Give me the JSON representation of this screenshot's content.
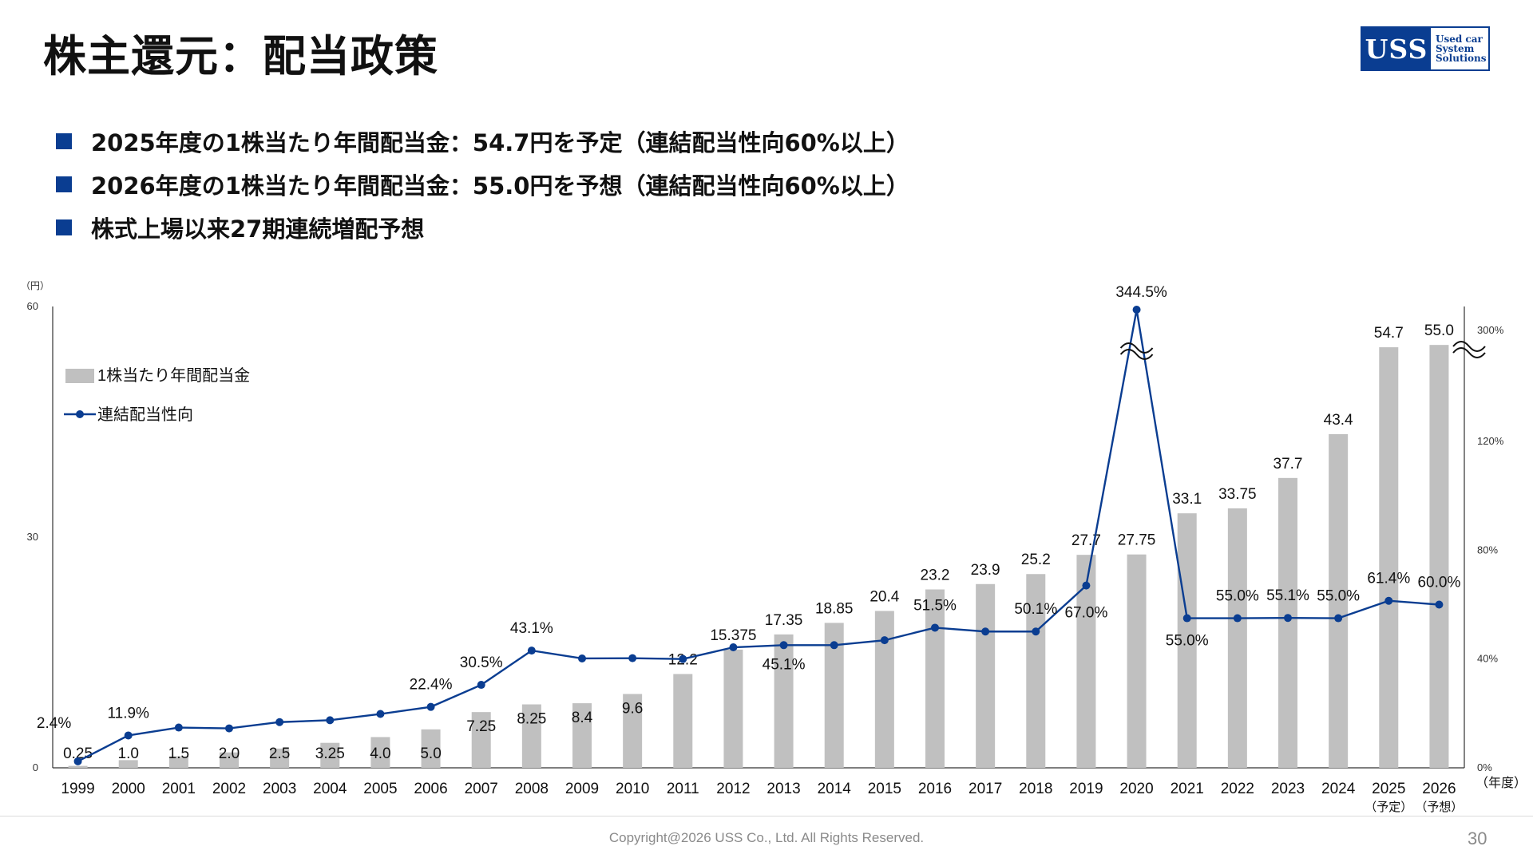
{
  "page": {
    "title": "株主還元：配当政策",
    "bullets": [
      "2025年度の1株当たり年間配当金：54.7円を予定（連結配当性向60%以上）",
      "2026年度の1株当たり年間配当金：55.0円を予想（連結配当性向60%以上）",
      "株式上場以来27期連続増配予想"
    ],
    "logo": {
      "mark": "USS",
      "tagline": [
        "Used car",
        "System",
        "Solutions"
      ]
    },
    "footer": "Copyright@2026 USS Co., Ltd. All Rights Reserved.",
    "page_number": "30",
    "colors": {
      "accent": "#0a3d91",
      "bar": "#c0c0c0",
      "line": "#0a3d91"
    }
  },
  "chart_data": {
    "type": "bar",
    "categories": [
      "1999",
      "2000",
      "2001",
      "2002",
      "2003",
      "2004",
      "2005",
      "2006",
      "2007",
      "2008",
      "2009",
      "2010",
      "2011",
      "2012",
      "2013",
      "2014",
      "2015",
      "2016",
      "2017",
      "2018",
      "2019",
      "2020",
      "2021",
      "2022",
      "2023",
      "2024",
      "2025",
      "2026"
    ],
    "category_sublabels": {
      "2025": "（予定）",
      "2026": "（予想）"
    },
    "xlabel": "（年度）",
    "ylabel": "（円）",
    "ylim": [
      0,
      60
    ],
    "yticks": [
      "0",
      "30",
      "60"
    ],
    "y2lim_labels": [
      "0%",
      "40%",
      "80%",
      "120%",
      "300%"
    ],
    "legend_placement": "top-left",
    "series": [
      {
        "name": "1株当たり年間配当金",
        "type": "bar",
        "values": [
          0.25,
          1.0,
          1.5,
          2.0,
          2.5,
          3.25,
          4.0,
          5.0,
          7.25,
          8.25,
          8.4,
          9.6,
          12.2,
          15.375,
          17.35,
          18.85,
          20.4,
          23.2,
          23.9,
          25.2,
          27.7,
          27.75,
          33.1,
          33.75,
          37.7,
          43.4,
          54.7,
          55.0
        ],
        "labels": [
          "0.25",
          "1.0",
          "1.5",
          "2.0",
          "2.5",
          "3.25",
          "4.0",
          "5.0",
          "7.25",
          "8.25",
          "8.4",
          "9.6",
          "12.2",
          "15.375",
          "17.35",
          "18.85",
          "20.4",
          "23.2",
          "23.9",
          "25.2",
          "27.7",
          "27.75",
          "33.1",
          "33.75",
          "37.7",
          "43.4",
          "54.7",
          "55.0"
        ]
      },
      {
        "name": "連結配当性向",
        "type": "line",
        "axis": "right",
        "values": [
          2.4,
          11.9,
          14.8,
          14.5,
          16.8,
          17.5,
          19.8,
          22.4,
          30.5,
          43.1,
          40.2,
          40.3,
          40.0,
          44.3,
          45.1,
          45.1,
          46.9,
          51.5,
          50.1,
          50.1,
          67.0,
          344.5,
          55.0,
          55.0,
          55.1,
          55.0,
          61.4,
          60.0
        ],
        "labels": [
          "2.4%",
          "11.9%",
          "",
          "",
          "",
          "",
          "",
          "22.4%",
          "30.5%",
          "43.1%",
          "",
          "",
          "",
          "",
          "45.1%",
          "",
          "",
          "51.5%",
          "",
          "50.1%",
          "67.0%",
          "344.5%",
          "55.0%",
          "55.0%",
          "55.1%",
          "55.0%",
          "61.4%",
          "60.0%"
        ]
      }
    ]
  }
}
